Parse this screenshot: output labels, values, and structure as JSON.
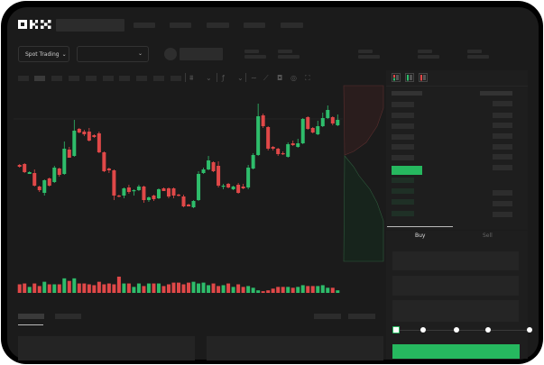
{
  "header": {
    "logo": "OKX"
  },
  "toolbar": {
    "market_select": "Spot Trading"
  },
  "order_form": {
    "tabs": [
      {
        "label": "Buy",
        "active": true
      },
      {
        "label": "Sell",
        "active": false
      }
    ],
    "slider_percent": 0
  },
  "colors": {
    "up": "#2ebd6b",
    "down": "#e04848",
    "accent": "#26b85f",
    "background": "#1b1b1b"
  },
  "chart_data": {
    "type": "candlestick",
    "candles": [
      [
        67,
        68,
        64,
        65
      ],
      [
        68,
        69,
        58,
        59
      ],
      [
        57,
        60,
        57,
        59
      ],
      [
        58,
        62,
        43,
        44
      ],
      [
        43,
        44,
        37,
        39
      ],
      [
        36,
        51,
        33,
        50
      ],
      [
        52,
        53,
        43,
        44
      ],
      [
        48,
        66,
        47,
        64
      ],
      [
        63,
        64,
        54,
        56
      ],
      [
        57,
        93,
        56,
        85
      ],
      [
        84,
        87,
        75,
        75
      ],
      [
        77,
        117,
        76,
        105
      ],
      [
        107,
        108,
        102,
        103
      ],
      [
        104,
        106,
        99,
        101
      ],
      [
        104,
        108,
        93,
        94
      ],
      [
        100,
        101,
        97,
        98
      ],
      [
        102,
        104,
        80,
        81
      ],
      [
        81,
        82,
        59,
        60
      ],
      [
        63,
        64,
        58,
        61
      ],
      [
        61,
        62,
        28,
        33
      ],
      [
        33,
        34,
        31,
        32
      ],
      [
        33,
        42,
        30,
        41
      ],
      [
        42,
        45,
        35,
        37
      ],
      [
        38,
        40,
        33,
        39
      ],
      [
        39,
        45,
        38,
        43
      ],
      [
        43,
        44,
        25,
        28
      ],
      [
        28,
        32,
        26,
        31
      ],
      [
        33,
        34,
        27,
        29
      ],
      [
        30,
        41,
        29,
        40
      ],
      [
        41,
        42,
        38,
        38
      ],
      [
        41,
        42,
        30,
        32
      ],
      [
        41,
        42,
        30,
        33
      ],
      [
        34,
        35,
        32,
        33
      ],
      [
        32,
        34,
        20,
        21
      ],
      [
        23,
        24,
        21,
        21
      ],
      [
        20,
        28,
        19,
        27
      ],
      [
        28,
        60,
        27,
        57
      ],
      [
        58,
        64,
        57,
        62
      ],
      [
        62,
        77,
        61,
        72
      ],
      [
        70,
        71,
        59,
        60
      ],
      [
        66,
        71,
        42,
        44
      ],
      [
        43,
        46,
        40,
        44
      ],
      [
        46,
        47,
        41,
        42
      ],
      [
        40,
        44,
        39,
        43
      ],
      [
        45,
        47,
        35,
        36
      ],
      [
        43,
        46,
        40,
        41
      ],
      [
        42,
        67,
        40,
        64
      ],
      [
        63,
        80,
        62,
        78
      ],
      [
        78,
        135,
        77,
        121
      ],
      [
        122,
        124,
        108,
        110
      ],
      [
        109,
        110,
        83,
        85
      ],
      [
        87,
        88,
        83,
        85
      ],
      [
        85,
        86,
        77,
        79
      ],
      [
        80,
        82,
        78,
        79
      ],
      [
        76,
        92,
        75,
        90
      ],
      [
        91,
        94,
        88,
        89
      ],
      [
        87,
        96,
        86,
        91
      ],
      [
        91,
        119,
        90,
        118
      ],
      [
        120,
        121,
        106,
        107
      ],
      [
        108,
        109,
        102,
        103
      ],
      [
        101,
        116,
        100,
        110
      ],
      [
        110,
        125,
        109,
        119
      ],
      [
        119,
        133,
        118,
        128
      ],
      [
        120,
        121,
        111,
        113
      ],
      [
        111,
        123,
        110,
        117
      ]
    ],
    "candle_fields": [
      "open",
      "high",
      "low",
      "close"
    ],
    "volume": [
      10,
      11,
      7,
      11,
      8,
      13,
      10,
      10,
      10,
      17,
      14,
      17,
      11,
      11,
      10,
      9,
      13,
      10,
      11,
      10,
      19,
      11,
      11,
      7,
      11,
      8,
      11,
      11,
      11,
      8,
      10,
      12,
      12,
      10,
      12,
      13,
      11,
      12,
      9,
      11,
      8,
      9,
      11,
      7,
      10,
      7,
      8,
      6,
      3,
      2,
      3,
      5,
      7,
      7,
      7,
      6,
      7,
      9,
      8,
      8,
      8,
      9,
      6,
      6,
      3
    ]
  }
}
